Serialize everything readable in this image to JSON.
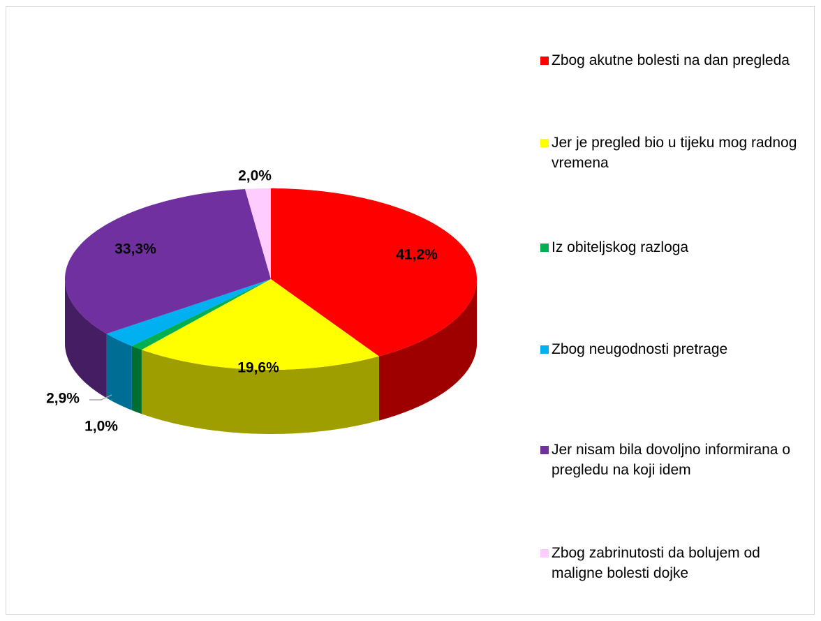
{
  "chart_data": {
    "type": "pie",
    "categories": [
      "Zbog akutne bolesti na dan pregleda",
      "Jer je pregled bio u tijeku mog radnog vremena",
      "Iz obiteljskog razloga",
      "Zbog neugodnosti pretrage",
      "Jer nisam bila dovoljno informirana o pregledu na koji idem",
      "Zbog zabrinutosti da bolujem od maligne bolesti dojke"
    ],
    "values": [
      41.2,
      19.6,
      1.0,
      2.9,
      33.3,
      2.0
    ],
    "value_labels": [
      "41,2%",
      "19,6%",
      "1,0%",
      "2,9%",
      "33,3%",
      "2,0%"
    ],
    "colors": [
      "#ff0000",
      "#ffff00",
      "#00b050",
      "#00b0f0",
      "#7030a0",
      "#ffccff"
    ],
    "legend": "right"
  }
}
